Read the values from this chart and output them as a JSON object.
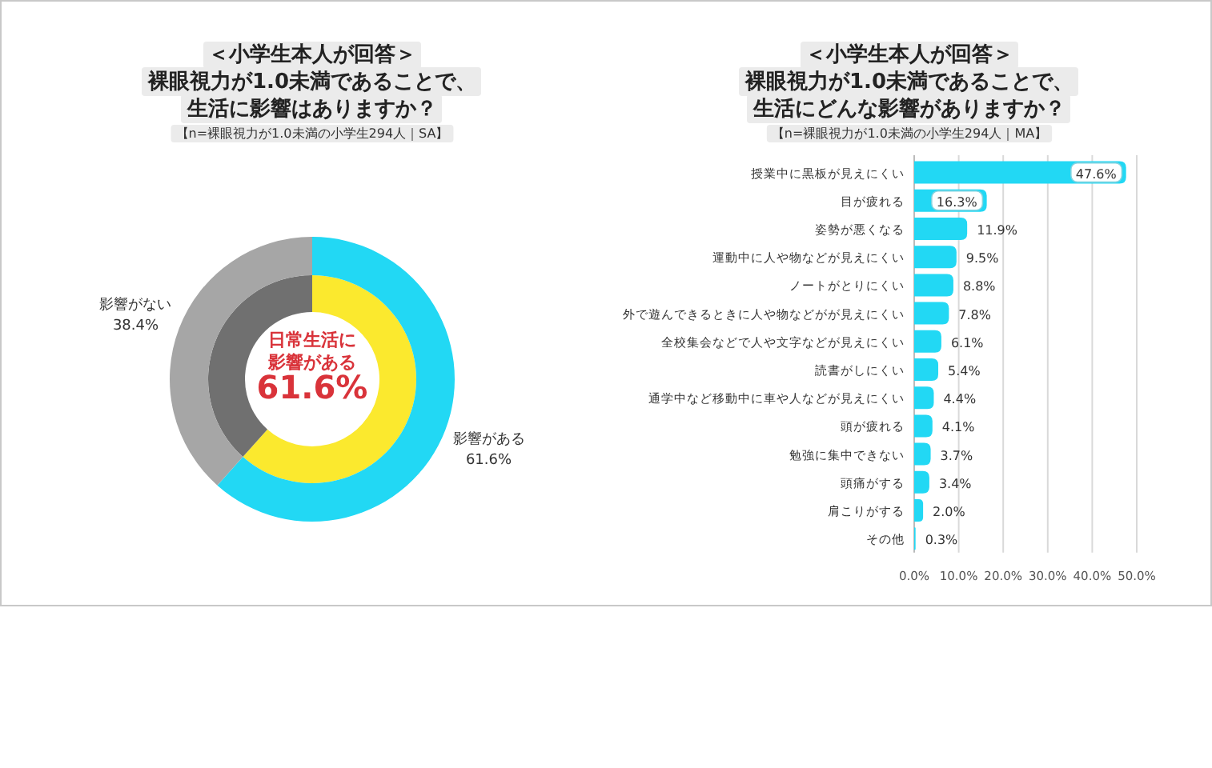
{
  "chart_data": [
    {
      "type": "donut",
      "title": "＜小学生本人が回答＞裸眼視力が1.0未満であることで、生活に影響はありますか？",
      "subtitle": "【n=裸眼視力が1.0未満の小学生294人｜SA】",
      "categories": [
        "影響がある",
        "影響がない"
      ],
      "series": [
        {
          "values": [
            61.6,
            38.4
          ],
          "colors": [
            "#fbe92e",
            "#707070"
          ]
        },
        {
          "values": [
            61.6,
            38.4
          ],
          "colors": [
            "#22d8f4",
            "#a6a6a6"
          ]
        }
      ],
      "value_labels": [
        "61.6%",
        "38.4%"
      ],
      "annotations": [
        "日常生活に影響がある",
        "61.6%"
      ]
    },
    {
      "type": "bar",
      "orientation": "horizontal",
      "title": "＜小学生本人が回答＞裸眼視力が1.0未満であることで、生活にどんな影響がありますか？",
      "subtitle": "【n=裸眼視力が1.0未満の小学生294人｜MA】",
      "categories": [
        "授業中に黒板が見えにくい",
        "目が疲れる",
        "姿勢が悪くなる",
        "運動中に人や物などが見えにくい",
        "ノートがとりにくい",
        "外で遊んできるときに人や物などがが見えにくい",
        "全校集会などで人や文字などが見えにくい",
        "読書がしにくい",
        "通学中など移動中に車や人などが見えにくい",
        "頭が疲れる",
        "勉強に集中できない",
        "頭痛がする",
        "肩こりがする",
        "その他"
      ],
      "values": [
        47.6,
        16.3,
        11.9,
        9.5,
        8.8,
        7.8,
        6.1,
        5.4,
        4.4,
        4.1,
        3.7,
        3.4,
        2.0,
        0.3
      ],
      "color": "#22d8f4",
      "value_labels": [
        "47.6%",
        "16.3%",
        "11.9%",
        "9.5%",
        "8.8%",
        "7.8%",
        "6.1%",
        "5.4%",
        "4.4%",
        "4.1%",
        "3.7%",
        "3.4%",
        "2.0%",
        "0.3%"
      ],
      "xlim": [
        0,
        50
      ],
      "xticks": [
        {
          "value": 0,
          "label": "0.0%"
        },
        {
          "value": 10,
          "label": "10.0%"
        },
        {
          "value": 20,
          "label": "20.0%"
        },
        {
          "value": 30,
          "label": "30.0%"
        },
        {
          "value": 40,
          "label": "40.0%"
        },
        {
          "value": 50,
          "label": "50.0%"
        }
      ],
      "grid": "x"
    }
  ]
}
